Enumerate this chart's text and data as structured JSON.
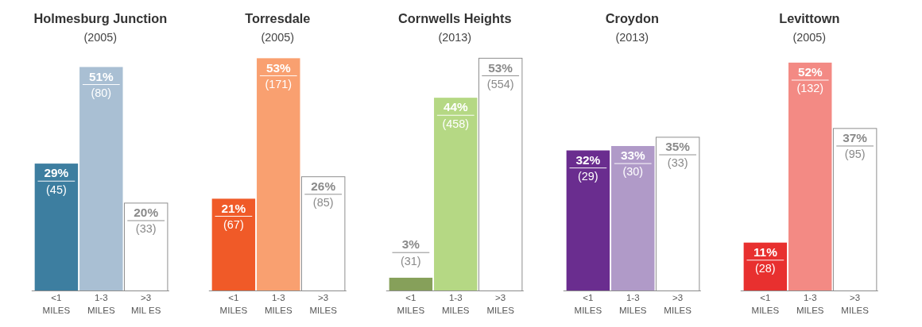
{
  "chart_data": [
    {
      "type": "bar",
      "title": "Holmesburg Junction",
      "subtitle": "(2005)",
      "categories": [
        "<1\nMILES",
        "1-3\nMILES",
        ">3\nMIL ES"
      ],
      "values": [
        29,
        51,
        20
      ],
      "colors": [
        "#3d7ea0",
        "#a9bfd3",
        "#ffffff"
      ],
      "value_labels": [
        "29%\n(45)",
        "51%\n(80)",
        "20%\n(33)"
      ]
    },
    {
      "type": "bar",
      "title": "Torresdale",
      "subtitle": "(2005)",
      "categories": [
        "<1\nMILES",
        "1-3\nMILES",
        ">3\nMILES"
      ],
      "values": [
        21,
        53,
        26
      ],
      "colors": [
        "#f05a28",
        "#f9a070",
        "#ffffff"
      ],
      "value_labels": [
        "21%\n(67)",
        "53%\n(171)",
        "26%\n(85)"
      ]
    },
    {
      "type": "bar",
      "title": "Cornwells Heights",
      "subtitle": "(2013)",
      "categories": [
        "<1\nMILES",
        "1-3\nMILES",
        ">3\nMILES"
      ],
      "values": [
        3,
        44,
        53
      ],
      "colors": [
        "#86a05a",
        "#b5d884",
        "#ffffff"
      ],
      "value_labels": [
        "3%\n(31)",
        "44%\n(458)",
        "53%\n(554)"
      ]
    },
    {
      "type": "bar",
      "title": "Croydon",
      "subtitle": "(2013)",
      "categories": [
        "<1\nMILES",
        "1-3\nMILES",
        ">3\nMILES"
      ],
      "values": [
        32,
        33,
        35
      ],
      "colors": [
        "#6a2d8f",
        "#b09ac8",
        "#ffffff"
      ],
      "value_labels": [
        "32%\n(29)",
        "33%\n(30)",
        "35%\n(33)"
      ]
    },
    {
      "type": "bar",
      "title": "Levittown",
      "subtitle": "(2005)",
      "categories": [
        "<1\nMILES",
        "1-3\nMILES",
        ">3\nMILES"
      ],
      "values": [
        11,
        52,
        37
      ],
      "colors": [
        "#e8302f",
        "#f38a84",
        "#ffffff"
      ],
      "value_labels": [
        "11%\n(28)",
        "52%\n(132)",
        "37%\n(95)"
      ]
    }
  ]
}
